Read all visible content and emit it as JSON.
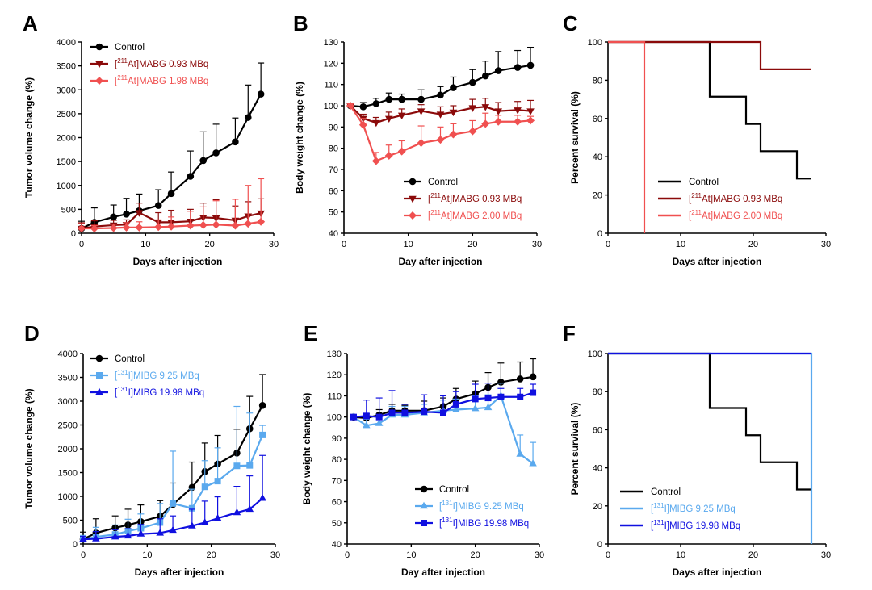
{
  "figure": {
    "colors": {
      "control": "#000000",
      "at_low": "#8b0a0a",
      "at_high": "#f05050",
      "mibg_low": "#5aa9ee",
      "mibg_high": "#1010e0"
    }
  },
  "chart_data": [
    {
      "id": "A",
      "type": "line",
      "panel_label": "A",
      "xlabel": "Days after injection",
      "ylabel": "Tumor volume change (%)",
      "xlim": [
        0,
        30
      ],
      "ylim": [
        0,
        4000
      ],
      "xticks": [
        0,
        10,
        20,
        30
      ],
      "yticks": [
        0,
        500,
        1000,
        1500,
        2000,
        2500,
        3000,
        3500,
        4000
      ],
      "legend": "top-left",
      "series": [
        {
          "name": "Control",
          "legend_parts": [
            "Control"
          ],
          "color": "#000000",
          "marker": "circle",
          "x": [
            0,
            2,
            5,
            7,
            9,
            12,
            14,
            17,
            19,
            21,
            24,
            26,
            28
          ],
          "y": [
            100,
            230,
            340,
            400,
            470,
            580,
            830,
            1190,
            1520,
            1680,
            1910,
            2420,
            2910
          ],
          "err": [
            150,
            300,
            250,
            330,
            350,
            330,
            450,
            530,
            600,
            600,
            500,
            680,
            650
          ]
        },
        {
          "name": "[211At]MABG 0.93 MBq",
          "legend_parts": [
            "[",
            "211",
            "At]MABG 0.93 MBq"
          ],
          "color": "#8b0a0a",
          "marker": "triangle-down",
          "x": [
            0,
            2,
            5,
            7,
            9,
            12,
            14,
            17,
            19,
            21,
            24,
            26,
            28
          ],
          "y": [
            100,
            140,
            170,
            180,
            430,
            230,
            230,
            250,
            330,
            320,
            270,
            360,
            420
          ],
          "err": [
            120,
            120,
            100,
            100,
            200,
            200,
            250,
            250,
            300,
            380,
            300,
            300,
            300
          ]
        },
        {
          "name": "[211At]MABG 1.98 MBq",
          "legend_parts": [
            "[",
            "211",
            "At]MABG 1.98 MBq"
          ],
          "color": "#f05050",
          "marker": "diamond",
          "x": [
            0,
            2,
            5,
            7,
            9,
            12,
            14,
            17,
            19,
            21,
            24,
            26,
            28
          ],
          "y": [
            100,
            100,
            110,
            120,
            120,
            130,
            140,
            160,
            170,
            180,
            160,
            200,
            240
          ],
          "err": [
            100,
            60,
            80,
            100,
            120,
            150,
            200,
            300,
            380,
            500,
            550,
            800,
            900
          ]
        }
      ]
    },
    {
      "id": "B",
      "type": "line",
      "panel_label": "B",
      "xlabel": "Day after injection",
      "ylabel": "Body weight change (%)",
      "xlim": [
        0,
        30
      ],
      "ylim": [
        40,
        130
      ],
      "xticks": [
        0,
        10,
        20,
        30
      ],
      "yticks": [
        40,
        50,
        60,
        70,
        80,
        90,
        100,
        110,
        120,
        130
      ],
      "legend": "middle",
      "series": [
        {
          "name": "Control",
          "legend_parts": [
            "Control"
          ],
          "color": "#000000",
          "marker": "circle",
          "x": [
            1,
            3,
            5,
            7,
            9,
            12,
            15,
            17,
            20,
            22,
            24,
            27,
            29
          ],
          "y": [
            100,
            99.5,
            101,
            103,
            103,
            103,
            105,
            108.5,
            111,
            114,
            116.5,
            118,
            119
          ],
          "err": [
            1,
            2,
            2.5,
            3,
            2.5,
            4.5,
            4,
            5,
            6,
            7,
            9,
            8,
            8.5
          ]
        },
        {
          "name": "[211At]MABG 0.93 MBq",
          "legend_parts": [
            "[",
            "211",
            "At]MABG 0.93 MBq"
          ],
          "color": "#8b0a0a",
          "marker": "triangle-down",
          "x": [
            1,
            3,
            5,
            7,
            9,
            12,
            15,
            17,
            20,
            22,
            24,
            27,
            29
          ],
          "y": [
            100,
            94,
            92,
            94,
            95.5,
            97.5,
            96,
            97,
            99,
            99.5,
            97.5,
            98,
            97.5
          ],
          "err": [
            1,
            2,
            2.5,
            3,
            3,
            3,
            3.5,
            3,
            4,
            4,
            4,
            4,
            5
          ]
        },
        {
          "name": "[211At]MABG 2.00 MBq",
          "legend_parts": [
            "[",
            "211",
            "At]MABG 2.00 MBq"
          ],
          "color": "#f05050",
          "marker": "diamond",
          "x": [
            1,
            3,
            5,
            7,
            9,
            12,
            15,
            17,
            20,
            22,
            24,
            27,
            29
          ],
          "y": [
            100,
            91,
            74,
            76.5,
            78.5,
            82.5,
            84,
            86.5,
            88,
            91.5,
            92.5,
            92.5,
            93
          ],
          "err": [
            1,
            3,
            4,
            5,
            5,
            8,
            6,
            5,
            5,
            5,
            3,
            3,
            2
          ]
        }
      ]
    },
    {
      "id": "C",
      "type": "line",
      "panel_label": "C",
      "xlabel": "Days after injection",
      "ylabel": "Percent survival (%)",
      "xlim": [
        0,
        30
      ],
      "ylim": [
        0,
        100
      ],
      "xticks": [
        0,
        10,
        20,
        30
      ],
      "yticks": [
        0,
        20,
        40,
        60,
        80,
        100
      ],
      "legend": "bottom-center",
      "series": [
        {
          "name": "Control",
          "legend_parts": [
            "Control"
          ],
          "color": "#000000",
          "style": "step",
          "x": [
            0,
            14,
            19,
            21,
            26,
            28
          ],
          "y": [
            100,
            71.4,
            57.1,
            42.9,
            28.6,
            28.6
          ]
        },
        {
          "name": "[211At]MABG 0.93 MBq",
          "legend_parts": [
            "[",
            "211",
            "At]MABG 0.93 MBq"
          ],
          "color": "#8b0a0a",
          "style": "step",
          "x": [
            0,
            21,
            28
          ],
          "y": [
            100,
            85.7,
            85.7
          ]
        },
        {
          "name": "[211At]MABG 2.00 MBq",
          "legend_parts": [
            "[",
            "211",
            "At]MABG 2.00 MBq"
          ],
          "color": "#f05050",
          "style": "step",
          "x": [
            0,
            5
          ],
          "y": [
            100,
            0
          ]
        }
      ]
    },
    {
      "id": "D",
      "type": "line",
      "panel_label": "D",
      "xlabel": "Days after injection",
      "ylabel": "Tumor volume change (%)",
      "xlim": [
        0,
        30
      ],
      "ylim": [
        0,
        4000
      ],
      "xticks": [
        0,
        10,
        20,
        30
      ],
      "yticks": [
        0,
        500,
        1000,
        1500,
        2000,
        2500,
        3000,
        3500,
        4000
      ],
      "legend": "top-left",
      "series": [
        {
          "name": "Control",
          "legend_parts": [
            "Control"
          ],
          "color": "#000000",
          "marker": "circle",
          "x": [
            0,
            2,
            5,
            7,
            9,
            12,
            14,
            17,
            19,
            21,
            24,
            26,
            28
          ],
          "y": [
            100,
            230,
            340,
            400,
            470,
            580,
            830,
            1190,
            1520,
            1680,
            1910,
            2420,
            2910
          ],
          "err": [
            150,
            300,
            250,
            330,
            350,
            330,
            450,
            530,
            600,
            600,
            500,
            680,
            650
          ]
        },
        {
          "name": "[131I]MIBG 9.25 MBq",
          "legend_parts": [
            "[",
            "131",
            "I]MIBG 9.25 MBq"
          ],
          "color": "#5aa9ee",
          "marker": "square",
          "x": [
            0,
            2,
            5,
            7,
            9,
            12,
            14,
            17,
            19,
            21,
            24,
            26,
            28
          ],
          "y": [
            100,
            150,
            200,
            270,
            330,
            450,
            850,
            750,
            1200,
            1320,
            1640,
            1650,
            2290
          ],
          "err": [
            80,
            200,
            200,
            250,
            300,
            400,
            1100,
            400,
            550,
            700,
            1250,
            1100,
            200
          ]
        },
        {
          "name": "[131I]MIBG 19.98 MBq",
          "legend_parts": [
            "[",
            "131",
            "I]MIBG 19.98 MBq"
          ],
          "color": "#1010e0",
          "marker": "triangle-up",
          "x": [
            0,
            2,
            5,
            7,
            9,
            12,
            14,
            17,
            19,
            21,
            24,
            26,
            28
          ],
          "y": [
            100,
            110,
            150,
            170,
            210,
            230,
            290,
            380,
            450,
            540,
            660,
            730,
            960
          ],
          "err": [
            60,
            150,
            150,
            150,
            200,
            300,
            300,
            350,
            450,
            450,
            550,
            700,
            900
          ]
        }
      ]
    },
    {
      "id": "E",
      "type": "line",
      "panel_label": "E",
      "xlabel": "Day after injection",
      "ylabel": "Body weight change (%)",
      "xlim": [
        0,
        30
      ],
      "ylim": [
        40,
        130
      ],
      "xticks": [
        0,
        10,
        20,
        30
      ],
      "yticks": [
        40,
        50,
        60,
        70,
        80,
        90,
        100,
        110,
        120,
        130
      ],
      "legend": "bottom-center",
      "series": [
        {
          "name": "Control",
          "legend_parts": [
            "Control"
          ],
          "color": "#000000",
          "marker": "circle",
          "x": [
            1,
            3,
            5,
            7,
            9,
            12,
            15,
            17,
            20,
            22,
            24,
            27,
            29
          ],
          "y": [
            100,
            99.5,
            101,
            103,
            103,
            103,
            105,
            108.5,
            111,
            114,
            116.5,
            118,
            119
          ],
          "err": [
            1,
            2,
            2.5,
            3,
            2.5,
            4.5,
            4,
            5,
            6,
            7,
            9,
            8,
            8.5
          ]
        },
        {
          "name": "[131I]MIBG 9.25 MBq",
          "legend_parts": [
            "[",
            "131",
            "I]MIBG 9.25 MBq"
          ],
          "color": "#5aa9ee",
          "marker": "triangle-up",
          "x": [
            1,
            3,
            5,
            7,
            9,
            12,
            15,
            17,
            20,
            22,
            24,
            27,
            29
          ],
          "y": [
            100,
            96,
            97,
            101,
            101,
            102,
            103,
            103.5,
            104,
            104.5,
            110,
            82.5,
            78
          ],
          "err": [
            1,
            3,
            3,
            4,
            4,
            4,
            5,
            5,
            6,
            6,
            6,
            9,
            10
          ]
        },
        {
          "name": "[131I]MIBG 19.98 MBq",
          "legend_parts": [
            "[",
            "131",
            "I]MIBG 19.98 MBq"
          ],
          "color": "#1010e0",
          "marker": "square",
          "x": [
            1,
            3,
            5,
            7,
            9,
            12,
            15,
            17,
            20,
            22,
            24,
            27,
            29
          ],
          "y": [
            100,
            100.5,
            100,
            102,
            102,
            102.5,
            102,
            106,
            108.5,
            109,
            109.5,
            109.5,
            111.5
          ],
          "err": [
            1,
            7.5,
            9,
            10.5,
            4,
            8,
            8,
            6,
            7,
            7,
            4,
            4,
            4
          ]
        }
      ]
    },
    {
      "id": "F",
      "type": "line",
      "panel_label": "F",
      "xlabel": "Days after injection",
      "ylabel": "Percent survival (%)",
      "xlim": [
        0,
        30
      ],
      "ylim": [
        0,
        100
      ],
      "xticks": [
        0,
        10,
        20,
        30
      ],
      "yticks": [
        0,
        20,
        40,
        60,
        80,
        100
      ],
      "legend": "bottom-left",
      "series": [
        {
          "name": "Control",
          "legend_parts": [
            "Control"
          ],
          "color": "#000000",
          "style": "step",
          "x": [
            0,
            14,
            19,
            21,
            26,
            28
          ],
          "y": [
            100,
            71.4,
            57.1,
            42.9,
            28.6,
            28.6
          ]
        },
        {
          "name": "[131I]MIBG 9.25 MBq",
          "legend_parts": [
            "[",
            "131",
            "I]MIBG 9.25 MBq"
          ],
          "color": "#5aa9ee",
          "style": "step",
          "x": [
            0,
            28
          ],
          "y": [
            100,
            0
          ]
        },
        {
          "name": "[131I]MIBG 19.98 MBq",
          "legend_parts": [
            "[",
            "131",
            "I]MIBG 19.98 MBq"
          ],
          "color": "#1010e0",
          "style": "step",
          "x": [
            0,
            28
          ],
          "y": [
            100,
            100
          ]
        }
      ]
    }
  ]
}
